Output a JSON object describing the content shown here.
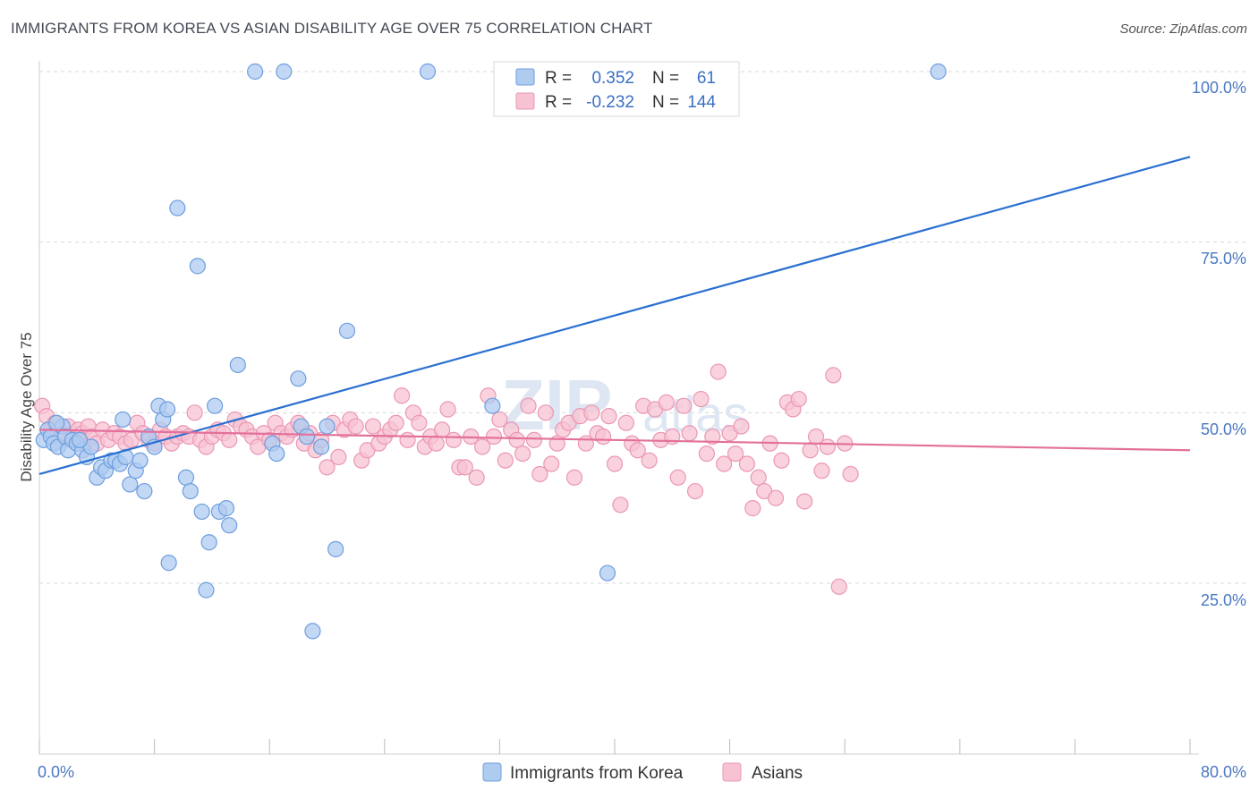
{
  "title": "IMMIGRANTS FROM KOREA VS ASIAN DISABILITY AGE OVER 75 CORRELATION CHART",
  "source": "Source: ZipAtlas.com",
  "watermark": {
    "zip": "ZIP",
    "atlas": "atlas"
  },
  "colors": {
    "blue_fill": "#aecbf0",
    "blue_stroke": "#6f9ede",
    "blue_line": "#2a6fd1",
    "pink_fill": "#f7c3d3",
    "pink_stroke": "#eb97b3",
    "pink_line": "#e3709a",
    "axis_text": "#4a78c2",
    "grid": "#d9d9d9"
  },
  "legend": {
    "rows": [
      {
        "r_label": "R =",
        "r_value": "0.352",
        "n_label": "N =",
        "n_value": "61"
      },
      {
        "r_label": "R =",
        "r_value": "-0.232",
        "n_label": "N =",
        "n_value": "144"
      }
    ]
  },
  "chart_data": {
    "type": "scatter",
    "title": "IMMIGRANTS FROM KOREA VS ASIAN DISABILITY AGE OVER 75 CORRELATION CHART",
    "xlabel": "",
    "ylabel": "Disability Age Over 75",
    "xlim": [
      0,
      80
    ],
    "ylim": [
      0,
      104
    ],
    "x_ticks_labels": [
      "0.0%",
      "80.0%"
    ],
    "y_ticks": [
      25,
      50,
      75,
      100
    ],
    "y_tick_labels": [
      "25.0%",
      "50.0%",
      "75.0%",
      "100.0%"
    ],
    "legend_position": "top-center",
    "series": [
      {
        "name": "Immigrants from Korea",
        "color": "blue",
        "trend": {
          "x": [
            0,
            80
          ],
          "y": [
            41.0,
            87.5
          ]
        },
        "points": [
          [
            0.3,
            46.0
          ],
          [
            0.6,
            47.5
          ],
          [
            0.8,
            46.5
          ],
          [
            1.0,
            45.5
          ],
          [
            1.3,
            45.0
          ],
          [
            1.6,
            48.0
          ],
          [
            1.8,
            46.5
          ],
          [
            2.0,
            44.5
          ],
          [
            2.3,
            46.0
          ],
          [
            2.6,
            45.5
          ],
          [
            3.0,
            44.5
          ],
          [
            3.3,
            43.5
          ],
          [
            3.6,
            45.0
          ],
          [
            4.0,
            40.5
          ],
          [
            4.3,
            42.0
          ],
          [
            4.6,
            41.5
          ],
          [
            5.0,
            43.0
          ],
          [
            5.3,
            43.0
          ],
          [
            5.6,
            42.5
          ],
          [
            6.0,
            43.5
          ],
          [
            6.3,
            39.5
          ],
          [
            6.7,
            41.5
          ],
          [
            7.0,
            43.0
          ],
          [
            7.3,
            38.5
          ],
          [
            7.6,
            46.5
          ],
          [
            8.0,
            45.0
          ],
          [
            8.3,
            51.0
          ],
          [
            8.6,
            49.0
          ],
          [
            8.9,
            50.5
          ],
          [
            9.6,
            80.0
          ],
          [
            10.2,
            40.5
          ],
          [
            10.5,
            38.5
          ],
          [
            11.0,
            71.5
          ],
          [
            11.3,
            35.5
          ],
          [
            11.8,
            31.0
          ],
          [
            12.2,
            51.0
          ],
          [
            12.5,
            35.5
          ],
          [
            13.0,
            36.0
          ],
          [
            13.2,
            33.5
          ],
          [
            13.8,
            57.0
          ],
          [
            15.0,
            100.0
          ],
          [
            16.2,
            45.5
          ],
          [
            16.5,
            44.0
          ],
          [
            17.0,
            100.0
          ],
          [
            18.0,
            55.0
          ],
          [
            18.2,
            48.0
          ],
          [
            18.6,
            46.5
          ],
          [
            19.0,
            18.0
          ],
          [
            19.6,
            45.0
          ],
          [
            20.0,
            48.0
          ],
          [
            20.6,
            30.0
          ],
          [
            21.4,
            62.0
          ],
          [
            27.0,
            100.0
          ],
          [
            31.5,
            51.0
          ],
          [
            39.5,
            26.5
          ],
          [
            62.5,
            100.0
          ],
          [
            1.2,
            48.5
          ],
          [
            2.8,
            46.0
          ],
          [
            5.8,
            49.0
          ],
          [
            9.0,
            28.0
          ],
          [
            11.6,
            24.0
          ]
        ]
      },
      {
        "name": "Asians",
        "color": "pink",
        "trend": {
          "x": [
            0,
            80
          ],
          "y": [
            47.5,
            44.5
          ]
        },
        "points": [
          [
            0.2,
            51.0
          ],
          [
            0.5,
            49.5
          ],
          [
            0.8,
            47.5
          ],
          [
            1.1,
            48.5
          ],
          [
            1.4,
            46.5
          ],
          [
            1.7,
            47.0
          ],
          [
            2.0,
            48.0
          ],
          [
            2.4,
            46.0
          ],
          [
            2.7,
            47.5
          ],
          [
            3.0,
            47.0
          ],
          [
            3.4,
            48.0
          ],
          [
            3.7,
            46.5
          ],
          [
            4.0,
            45.5
          ],
          [
            4.4,
            47.5
          ],
          [
            4.8,
            46.0
          ],
          [
            5.2,
            47.0
          ],
          [
            5.6,
            46.5
          ],
          [
            6.0,
            45.5
          ],
          [
            6.4,
            46.0
          ],
          [
            6.8,
            48.5
          ],
          [
            7.2,
            47.0
          ],
          [
            7.6,
            46.0
          ],
          [
            8.0,
            45.5
          ],
          [
            8.4,
            47.5
          ],
          [
            8.8,
            46.5
          ],
          [
            9.2,
            45.5
          ],
          [
            9.6,
            46.5
          ],
          [
            10.0,
            47.0
          ],
          [
            10.4,
            46.5
          ],
          [
            10.8,
            50.0
          ],
          [
            11.2,
            46.0
          ],
          [
            11.6,
            45.0
          ],
          [
            12.0,
            46.5
          ],
          [
            12.4,
            47.5
          ],
          [
            12.8,
            47.0
          ],
          [
            13.2,
            46.0
          ],
          [
            13.6,
            49.0
          ],
          [
            14.0,
            48.0
          ],
          [
            14.4,
            47.5
          ],
          [
            14.8,
            46.5
          ],
          [
            15.2,
            45.0
          ],
          [
            15.6,
            47.0
          ],
          [
            16.0,
            46.0
          ],
          [
            16.4,
            48.5
          ],
          [
            16.8,
            47.0
          ],
          [
            17.2,
            46.5
          ],
          [
            17.6,
            47.5
          ],
          [
            18.0,
            48.5
          ],
          [
            18.4,
            45.5
          ],
          [
            18.8,
            47.0
          ],
          [
            19.2,
            44.5
          ],
          [
            19.6,
            46.0
          ],
          [
            20.0,
            42.0
          ],
          [
            20.4,
            48.5
          ],
          [
            20.8,
            43.5
          ],
          [
            21.2,
            47.5
          ],
          [
            21.6,
            49.0
          ],
          [
            22.0,
            48.0
          ],
          [
            22.4,
            43.0
          ],
          [
            22.8,
            44.5
          ],
          [
            23.2,
            48.0
          ],
          [
            23.6,
            45.5
          ],
          [
            24.0,
            46.5
          ],
          [
            24.4,
            47.5
          ],
          [
            24.8,
            48.5
          ],
          [
            25.2,
            52.5
          ],
          [
            25.6,
            46.0
          ],
          [
            26.0,
            50.0
          ],
          [
            26.4,
            48.5
          ],
          [
            26.8,
            45.0
          ],
          [
            27.2,
            46.5
          ],
          [
            27.6,
            45.5
          ],
          [
            28.0,
            47.5
          ],
          [
            28.4,
            50.5
          ],
          [
            28.8,
            46.0
          ],
          [
            29.2,
            42.0
          ],
          [
            29.6,
            42.0
          ],
          [
            30.0,
            46.5
          ],
          [
            30.4,
            40.5
          ],
          [
            30.8,
            45.0
          ],
          [
            31.2,
            52.5
          ],
          [
            31.6,
            46.5
          ],
          [
            32.0,
            49.0
          ],
          [
            32.4,
            43.0
          ],
          [
            32.8,
            47.5
          ],
          [
            33.2,
            46.0
          ],
          [
            33.6,
            44.0
          ],
          [
            34.0,
            51.0
          ],
          [
            34.4,
            46.0
          ],
          [
            34.8,
            41.0
          ],
          [
            35.2,
            50.0
          ],
          [
            35.6,
            42.5
          ],
          [
            36.0,
            45.5
          ],
          [
            36.4,
            47.5
          ],
          [
            36.8,
            48.5
          ],
          [
            37.2,
            40.5
          ],
          [
            37.6,
            49.5
          ],
          [
            38.0,
            45.5
          ],
          [
            38.4,
            50.0
          ],
          [
            38.8,
            47.0
          ],
          [
            39.2,
            46.5
          ],
          [
            39.6,
            49.5
          ],
          [
            40.0,
            42.5
          ],
          [
            40.4,
            36.5
          ],
          [
            40.8,
            48.5
          ],
          [
            41.2,
            45.5
          ],
          [
            41.6,
            44.5
          ],
          [
            42.0,
            51.0
          ],
          [
            42.4,
            43.0
          ],
          [
            42.8,
            50.5
          ],
          [
            43.2,
            46.0
          ],
          [
            43.6,
            51.5
          ],
          [
            44.0,
            46.5
          ],
          [
            44.4,
            40.5
          ],
          [
            44.8,
            51.0
          ],
          [
            45.2,
            47.0
          ],
          [
            45.6,
            38.5
          ],
          [
            46.0,
            52.0
          ],
          [
            46.4,
            44.0
          ],
          [
            46.8,
            46.5
          ],
          [
            47.2,
            56.0
          ],
          [
            47.6,
            42.5
          ],
          [
            48.0,
            47.0
          ],
          [
            48.4,
            44.0
          ],
          [
            48.8,
            48.0
          ],
          [
            49.2,
            42.5
          ],
          [
            49.6,
            36.0
          ],
          [
            50.0,
            40.5
          ],
          [
            50.4,
            38.5
          ],
          [
            50.8,
            45.5
          ],
          [
            51.2,
            37.5
          ],
          [
            51.6,
            43.0
          ],
          [
            52.0,
            51.5
          ],
          [
            52.4,
            50.5
          ],
          [
            52.8,
            52.0
          ],
          [
            53.2,
            37.0
          ],
          [
            53.6,
            44.5
          ],
          [
            54.0,
            46.5
          ],
          [
            54.4,
            41.5
          ],
          [
            54.8,
            45.0
          ],
          [
            55.2,
            55.5
          ],
          [
            55.6,
            24.5
          ],
          [
            56.0,
            45.5
          ],
          [
            56.4,
            41.0
          ]
        ]
      }
    ]
  },
  "bottom_legend": {
    "items": [
      {
        "label": "Immigrants from Korea"
      },
      {
        "label": "Asians"
      }
    ]
  },
  "axis": {
    "y_title": "Disability Age Over 75",
    "x_min_label": "0.0%",
    "x_max_label": "80.0%",
    "y_labels": [
      "100.0%",
      "75.0%",
      "50.0%",
      "25.0%"
    ]
  }
}
